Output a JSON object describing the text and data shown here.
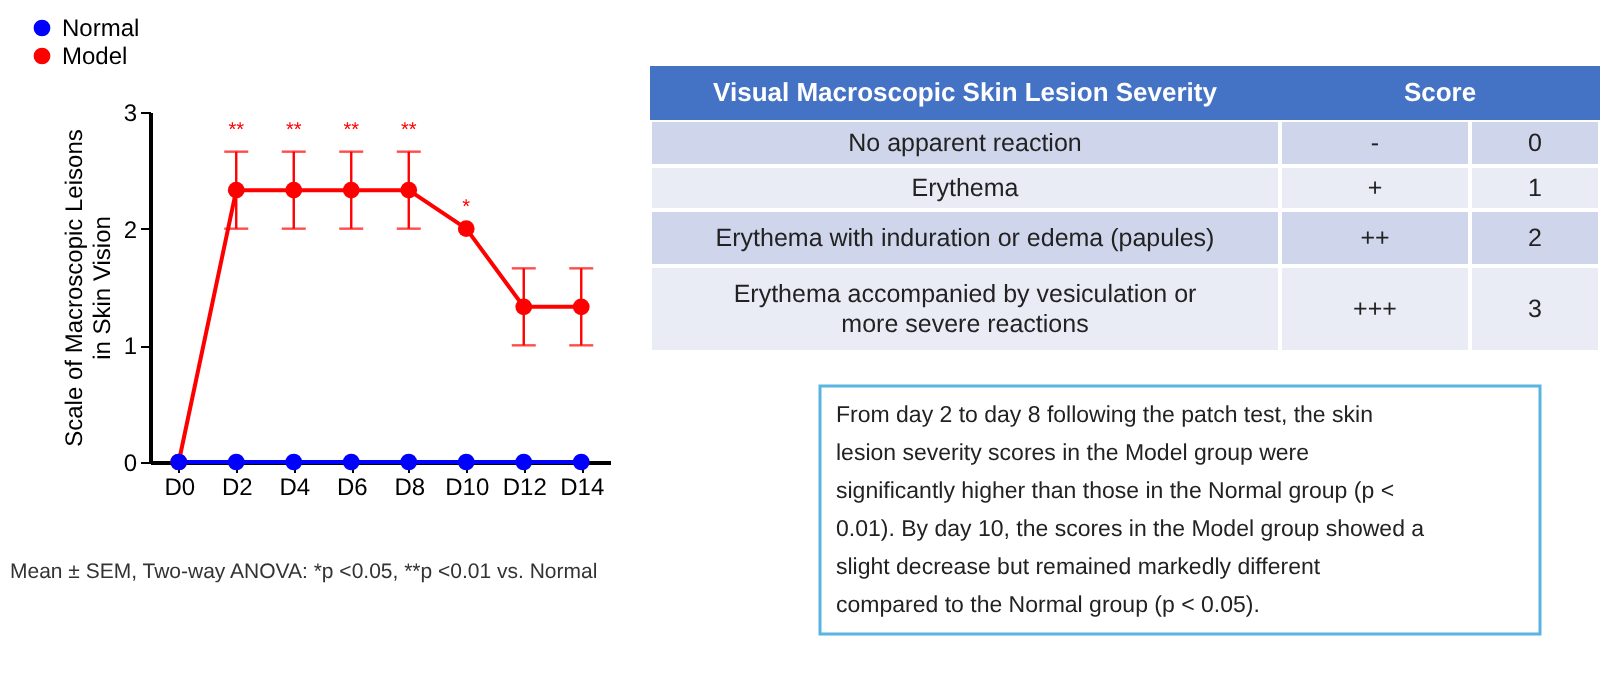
{
  "chart_data": [
    {
      "type": "line",
      "ylabel": "Scale of Macroscopic Leisons\nin Skin Vision",
      "categories": [
        "D0",
        "D2",
        "D4",
        "D6",
        "D8",
        "D10",
        "D12",
        "D14"
      ],
      "series": [
        {
          "name": "Normal",
          "color": "#0000ff",
          "values": [
            0,
            0,
            0,
            0,
            0,
            0,
            0,
            0
          ]
        },
        {
          "name": "Model",
          "color": "#ff0000",
          "values": [
            0,
            2.33,
            2.33,
            2.33,
            2.33,
            2.0,
            1.33,
            1.33
          ],
          "errors": [
            null,
            0.33,
            0.33,
            0.33,
            0.33,
            null,
            0.33,
            0.33
          ]
        }
      ],
      "ylim": [
        0,
        3
      ],
      "yticks": [
        {
          "value": 0,
          "label": "0"
        },
        {
          "value": 1,
          "label": "1"
        },
        {
          "value": 2,
          "label": "2"
        },
        {
          "value": 3,
          "label": "3"
        }
      ],
      "grid": false,
      "legend": "top left",
      "marker": "circle",
      "line_style": "solid",
      "annotations": [
        {
          "text": "**",
          "x": "D2",
          "y": 2.66
        },
        {
          "text": "**",
          "x": "D4",
          "y": 2.66
        },
        {
          "text": "**",
          "x": "D6",
          "y": 2.66
        },
        {
          "text": "**",
          "x": "D8",
          "y": 2.66
        },
        {
          "text": "*",
          "x": "D10",
          "y": 2.0
        },
        "Mean ± SEM, Two-way ANOVA: *p <0.05, **p <0.01 vs. Normal"
      ]
    },
    {
      "type": "other",
      "annotations": [
        "Visual Macroscopic Skin Lesion Severity",
        "Score",
        "No apparent reaction",
        "-",
        "0",
        "Erythema",
        "+",
        "1",
        "Erythema with induration or edema (papules)",
        "++",
        "2",
        "Erythema accompanied by vesiculation or\nmore severe reactions",
        "+++",
        "3",
        "From day 2 to day 8 following the patch test, the skin\nlesion severity scores in the Model group were\nsignificantly higher than those in the Normal group (p <\n0.01). By day 10, the scores in the Model group showed a\nslight decrease but remained markedly different\ncompared to the Normal group (p < 0.05)."
      ]
    }
  ]
}
